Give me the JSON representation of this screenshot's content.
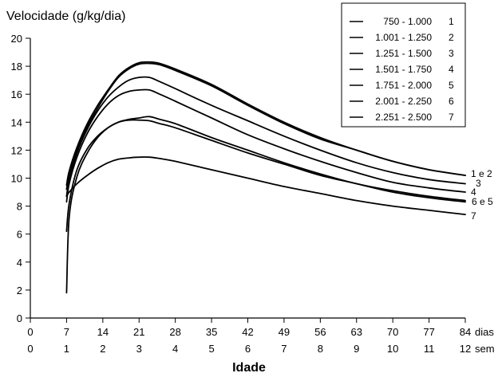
{
  "chart_data": {
    "type": "line",
    "ylabel": "Velocidade (g/kg/dia)",
    "xlabel": "Idade",
    "ylim": [
      0,
      20
    ],
    "xlim": [
      0,
      84
    ],
    "yticks": [
      "0",
      "2",
      "4",
      "6",
      "8",
      "10",
      "12",
      "14",
      "16",
      "18",
      "20"
    ],
    "xticks_days": [
      "0",
      "7",
      "14",
      "21",
      "28",
      "35",
      "42",
      "49",
      "56",
      "63",
      "70",
      "77",
      "84"
    ],
    "xticks_weeks": [
      "0",
      "1",
      "2",
      "3",
      "4",
      "5",
      "6",
      "7",
      "8",
      "9",
      "10",
      "11",
      "12"
    ],
    "x_unit_days": "dias",
    "x_unit_weeks": "sem",
    "legend_position": "top-right",
    "legend": [
      {
        "range": "750 - 1.000",
        "num": "1"
      },
      {
        "range": "1.001 - 1.250",
        "num": "2"
      },
      {
        "range": "1.251 - 1.500",
        "num": "3"
      },
      {
        "range": "1.501 - 1.750",
        "num": "4"
      },
      {
        "range": "1.751 - 2.000",
        "num": "5"
      },
      {
        "range": "2.001 - 2.250",
        "num": "6"
      },
      {
        "range": "2.251 - 2.500",
        "num": "7"
      }
    ],
    "end_labels": [
      "1 e 2",
      "3",
      "4",
      "6 e 5",
      "7"
    ],
    "series": [
      {
        "x": [
          7,
          7.5,
          9,
          11,
          13,
          15,
          17,
          19,
          21,
          23,
          25,
          28,
          35,
          42,
          49,
          56,
          63,
          70,
          77,
          84
        ],
        "y": [
          9.2,
          10.3,
          12.0,
          13.7,
          15.0,
          16.2,
          17.2,
          17.8,
          18.15,
          18.2,
          18.1,
          17.7,
          16.6,
          15.2,
          13.9,
          12.8,
          12.0,
          11.2,
          10.6,
          10.2
        ]
      },
      {
        "x": [
          7,
          7.5,
          9,
          11,
          13,
          15,
          17,
          19,
          21,
          23,
          25,
          28,
          35,
          42,
          49,
          56,
          63,
          70,
          77,
          84
        ],
        "y": [
          9.5,
          10.5,
          12.2,
          13.9,
          15.2,
          16.3,
          17.3,
          17.9,
          18.25,
          18.3,
          18.2,
          17.8,
          16.7,
          15.3,
          14.0,
          12.9,
          12.0,
          11.2,
          10.6,
          10.2
        ]
      },
      {
        "x": [
          7,
          7.5,
          9,
          11,
          13,
          15,
          17,
          19,
          21,
          23,
          25,
          28,
          35,
          42,
          49,
          56,
          63,
          70,
          77,
          84
        ],
        "y": [
          8.7,
          9.9,
          11.8,
          13.5,
          14.8,
          15.8,
          16.5,
          17.0,
          17.2,
          17.2,
          16.9,
          16.4,
          15.2,
          14.1,
          13.0,
          12.0,
          11.1,
          10.4,
          9.9,
          9.6
        ]
      },
      {
        "x": [
          7,
          7.5,
          9,
          11,
          13,
          15,
          17,
          19,
          21,
          23,
          25,
          28,
          35,
          42,
          49,
          56,
          63,
          70,
          77,
          84
        ],
        "y": [
          8.3,
          9.6,
          11.5,
          13.2,
          14.4,
          15.3,
          15.9,
          16.2,
          16.3,
          16.3,
          16.0,
          15.5,
          14.3,
          13.1,
          12.1,
          11.2,
          10.4,
          9.7,
          9.3,
          9.0
        ]
      },
      {
        "x": [
          7,
          7.5,
          9,
          11,
          13,
          15,
          17,
          19,
          21,
          23,
          25,
          28,
          35,
          42,
          49,
          56,
          63,
          70,
          77,
          84
        ],
        "y": [
          6.2,
          8.2,
          10.6,
          12.1,
          13.0,
          13.6,
          14.0,
          14.2,
          14.3,
          14.4,
          14.2,
          13.9,
          12.9,
          12.0,
          11.1,
          10.3,
          9.6,
          9.1,
          8.7,
          8.4
        ]
      },
      {
        "x": [
          7,
          7.5,
          9,
          11,
          13,
          15,
          17,
          19,
          21,
          23,
          25,
          28,
          35,
          42,
          49,
          56,
          63,
          70,
          77,
          84
        ],
        "y": [
          1.8,
          7.2,
          10.1,
          11.8,
          12.9,
          13.6,
          14.0,
          14.15,
          14.15,
          14.1,
          13.9,
          13.6,
          12.7,
          11.8,
          11.0,
          10.2,
          9.6,
          9.0,
          8.6,
          8.3
        ]
      },
      {
        "x": [
          7,
          7.5,
          9,
          11,
          13,
          15,
          17,
          19,
          21,
          23,
          25,
          28,
          35,
          42,
          49,
          56,
          63,
          70,
          77,
          84
        ],
        "y": [
          8.7,
          9.0,
          9.6,
          10.2,
          10.7,
          11.1,
          11.35,
          11.45,
          11.5,
          11.5,
          11.4,
          11.2,
          10.6,
          10.0,
          9.4,
          8.9,
          8.4,
          8.0,
          7.7,
          7.4
        ]
      }
    ]
  }
}
